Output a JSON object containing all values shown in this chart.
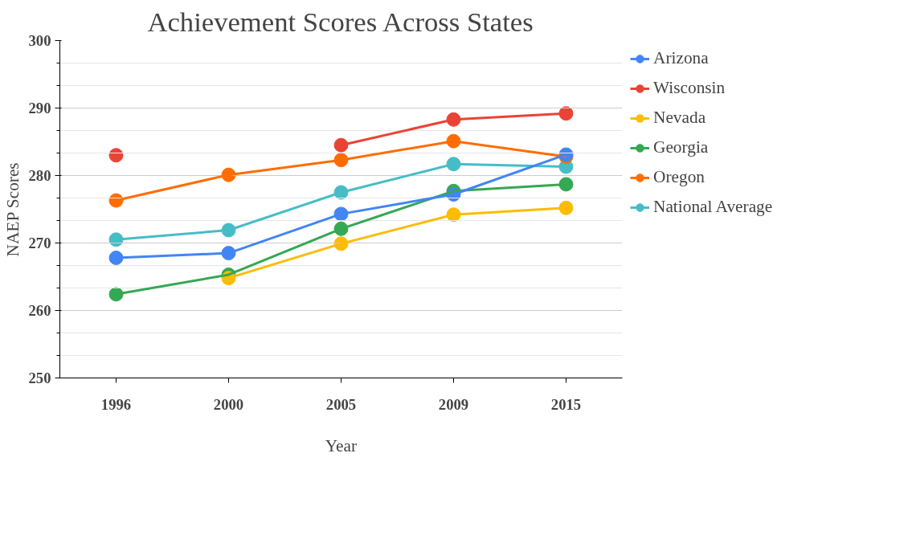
{
  "chart_data": {
    "type": "line",
    "title": "Achievement Scores Across States",
    "xlabel": "Year",
    "ylabel": "NAEP Scores",
    "categories": [
      "1996",
      "2000",
      "2005",
      "2009",
      "2015"
    ],
    "series": [
      {
        "name": "Arizona",
        "color": "#4285f4",
        "values": [
          267.8,
          268.5,
          274.3,
          277.2,
          283.1
        ]
      },
      {
        "name": "Wisconsin",
        "color": "#ea4335",
        "values": [
          283,
          null,
          284.5,
          288.3,
          289.2
        ]
      },
      {
        "name": "Nevada",
        "color": "#fbbc04",
        "values": [
          null,
          264.8,
          269.9,
          274.2,
          275.2
        ]
      },
      {
        "name": "Georgia",
        "color": "#34a853",
        "values": [
          262.4,
          265.3,
          272.1,
          277.7,
          278.7
        ]
      },
      {
        "name": "Oregon",
        "color": "#ff6d01",
        "values": [
          276.3,
          280.1,
          282.3,
          285.1,
          282.8
        ]
      },
      {
        "name": "National Average",
        "color": "#46bdc6",
        "values": [
          270.5,
          271.9,
          277.5,
          281.7,
          281.3
        ]
      }
    ],
    "ylim": [
      250,
      300
    ],
    "yticks": [
      250,
      {
        "value": 253.33,
        "label": null
      },
      {
        "value": 256.67,
        "label": null
      },
      260,
      {
        "value": 263.33,
        "label": null
      },
      {
        "value": 266.67,
        "label": null
      },
      270,
      {
        "value": 273.33,
        "label": null
      },
      {
        "value": 276.67,
        "label": null
      },
      280,
      {
        "value": 283.33,
        "label": null
      },
      {
        "value": 286.67,
        "label": null
      },
      290,
      {
        "value": 293.33,
        "label": null
      },
      {
        "value": 296.67,
        "label": null
      },
      300
    ],
    "grid": "y",
    "legend": "right",
    "marker": "circle",
    "line_style": "solid"
  }
}
